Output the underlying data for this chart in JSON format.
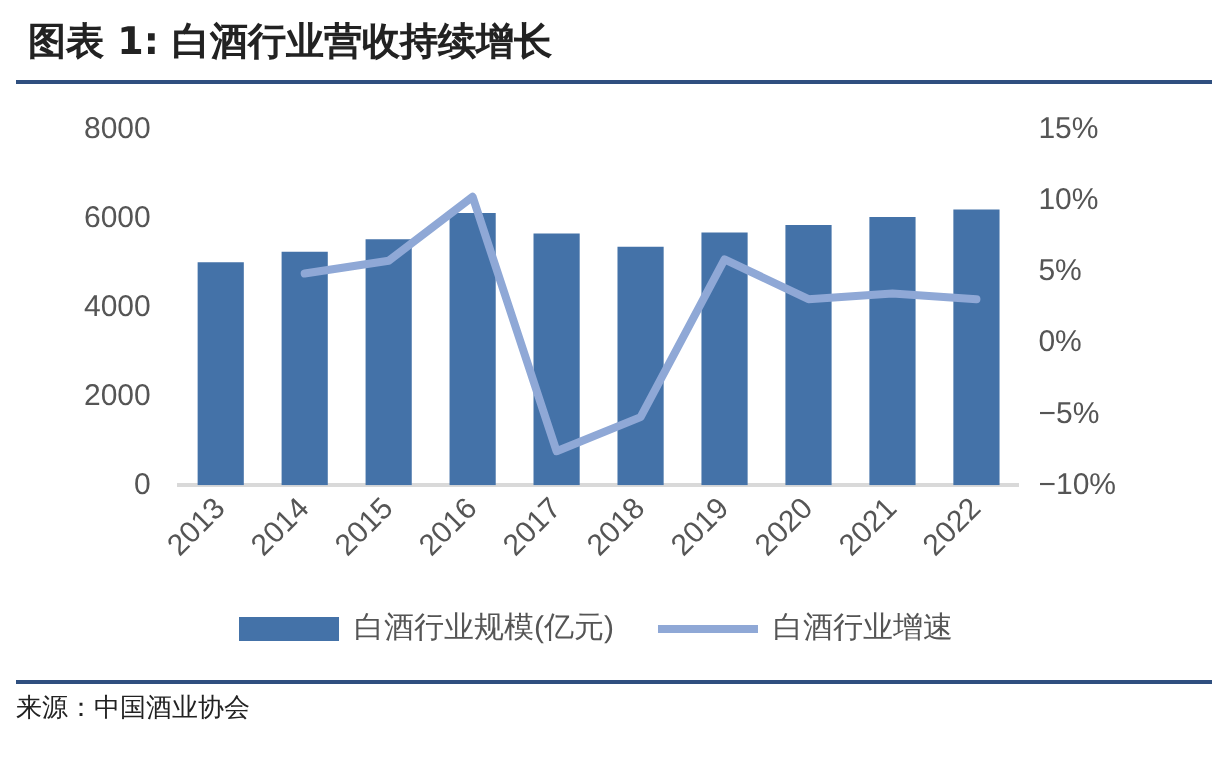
{
  "chart_data": {
    "type": "bar",
    "title": "图表 1:  白酒行业营收持续增长",
    "annotations": [
      "来源：中国酒业协会"
    ],
    "categories": [
      "2013",
      "2014",
      "2015",
      "2016",
      "2017",
      "2018",
      "2019",
      "2020",
      "2021",
      "2022"
    ],
    "series": [
      {
        "name": "白酒行业规模(亿元)",
        "color": "#4472a8",
        "values": [
          5020,
          5260,
          5540,
          6130,
          5670,
          5370,
          5690,
          5860,
          6040,
          6210
        ]
      },
      {
        "name": "白酒行业增速",
        "type": "line",
        "axis": "y2",
        "color": "#8fa8d6",
        "values": [
          null,
          4.9,
          5.8,
          10.3,
          -7.6,
          -5.2,
          5.9,
          3.1,
          3.5,
          3.1
        ]
      }
    ],
    "ylim": [
      0,
      8000
    ],
    "yticks": [
      0,
      2000,
      4000,
      6000,
      8000
    ],
    "y2lim": [
      -10,
      15
    ],
    "y2ticks": [
      {
        "value": -10,
        "label": "−10%"
      },
      {
        "value": -5,
        "label": "−5%"
      },
      {
        "value": 0,
        "label": "0%"
      },
      {
        "value": 5,
        "label": "5%"
      },
      {
        "value": 10,
        "label": "10%"
      },
      {
        "value": 15,
        "label": "15%"
      }
    ],
    "grid": false,
    "legend": "bottom",
    "marker": "none",
    "line_style": "solid"
  }
}
